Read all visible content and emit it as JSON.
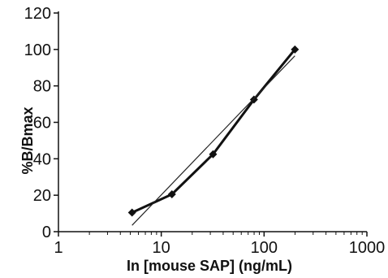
{
  "chart_data": {
    "type": "line",
    "title": "",
    "xlabel": "In [mouse SAP] (ng/mL)",
    "ylabel": "%B/Bmax",
    "x_scale": "log",
    "xlim": [
      1,
      1000
    ],
    "ylim": [
      0,
      120
    ],
    "x_ticks": [
      1,
      10,
      100,
      1000
    ],
    "x_tick_labels": [
      "1",
      "10",
      "100",
      "1000"
    ],
    "y_ticks": [
      0,
      20,
      40,
      60,
      80,
      100,
      120
    ],
    "y_tick_labels": [
      "0",
      "20",
      "40",
      "60",
      "80",
      "100",
      "120"
    ],
    "grid": false,
    "legend": false,
    "series": [
      {
        "kind": "data",
        "marker": "diamond",
        "x": [
          5.2,
          12.7,
          31.9,
          79.7,
          199.5
        ],
        "y": [
          10.5,
          20.5,
          42.5,
          72.5,
          100
        ]
      },
      {
        "kind": "trendline",
        "x": [
          5.2,
          199.5
        ],
        "y": [
          3.5,
          96.5
        ]
      }
    ]
  }
}
